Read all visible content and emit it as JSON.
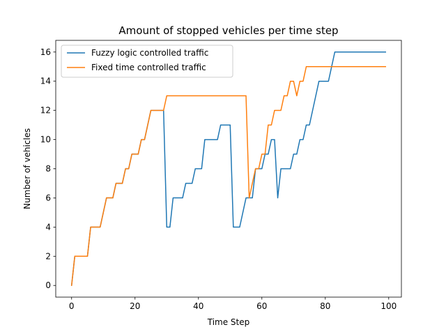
{
  "chart_data": {
    "type": "line",
    "title": "Amount of stopped vehicles per time step",
    "xlabel": "Time Step",
    "ylabel": "Number of vehicles",
    "xlim": [
      -5,
      104
    ],
    "ylim": [
      -0.8,
      16.8
    ],
    "xticks": [
      0,
      20,
      40,
      60,
      80,
      100
    ],
    "yticks": [
      0,
      2,
      4,
      6,
      8,
      10,
      12,
      14,
      16
    ],
    "grid": false,
    "legend_position": "top-left",
    "series": [
      {
        "name": "Fuzzy logic controlled traffic",
        "color": "#1f77b4",
        "points": [
          [
            0,
            0
          ],
          [
            1,
            2
          ],
          [
            5,
            2
          ],
          [
            6,
            4
          ],
          [
            9,
            4
          ],
          [
            11,
            6
          ],
          [
            13,
            6
          ],
          [
            14,
            7
          ],
          [
            16,
            7
          ],
          [
            17,
            8
          ],
          [
            18,
            8
          ],
          [
            19,
            9
          ],
          [
            21,
            9
          ],
          [
            22,
            10
          ],
          [
            23,
            10
          ],
          [
            25,
            12
          ],
          [
            29,
            12
          ],
          [
            30,
            4
          ],
          [
            31,
            4
          ],
          [
            32,
            6
          ],
          [
            35,
            6
          ],
          [
            36,
            7
          ],
          [
            38,
            7
          ],
          [
            39,
            8
          ],
          [
            41,
            8
          ],
          [
            42,
            10
          ],
          [
            46,
            10
          ],
          [
            47,
            11
          ],
          [
            50,
            11
          ],
          [
            51,
            4
          ],
          [
            53,
            4
          ],
          [
            55,
            6
          ],
          [
            57,
            6
          ],
          [
            58,
            8
          ],
          [
            60,
            8
          ],
          [
            61,
            9
          ],
          [
            62,
            9
          ],
          [
            63,
            10
          ],
          [
            64,
            10
          ],
          [
            65,
            6
          ],
          [
            66,
            8
          ],
          [
            69,
            8
          ],
          [
            70,
            9
          ],
          [
            71,
            9
          ],
          [
            72,
            10
          ],
          [
            73,
            10
          ],
          [
            74,
            11
          ],
          [
            75,
            11
          ],
          [
            78,
            14
          ],
          [
            81,
            14
          ],
          [
            83,
            16
          ],
          [
            99,
            16
          ]
        ]
      },
      {
        "name": "Fixed time controlled traffic",
        "color": "#ff7f0e",
        "points": [
          [
            0,
            0
          ],
          [
            1,
            2
          ],
          [
            5,
            2
          ],
          [
            6,
            4
          ],
          [
            9,
            4
          ],
          [
            11,
            6
          ],
          [
            13,
            6
          ],
          [
            14,
            7
          ],
          [
            16,
            7
          ],
          [
            17,
            8
          ],
          [
            18,
            8
          ],
          [
            19,
            9
          ],
          [
            21,
            9
          ],
          [
            22,
            10
          ],
          [
            23,
            10
          ],
          [
            25,
            12
          ],
          [
            29,
            12
          ],
          [
            30,
            13
          ],
          [
            55,
            13
          ],
          [
            56,
            6
          ],
          [
            58,
            8
          ],
          [
            59,
            8
          ],
          [
            60,
            9
          ],
          [
            61,
            9
          ],
          [
            62,
            11
          ],
          [
            63,
            11
          ],
          [
            64,
            12
          ],
          [
            66,
            12
          ],
          [
            67,
            13
          ],
          [
            68,
            13
          ],
          [
            69,
            14
          ],
          [
            70,
            14
          ],
          [
            71,
            13
          ],
          [
            72,
            14
          ],
          [
            73,
            14
          ],
          [
            74,
            15
          ],
          [
            99,
            15
          ]
        ]
      }
    ]
  }
}
